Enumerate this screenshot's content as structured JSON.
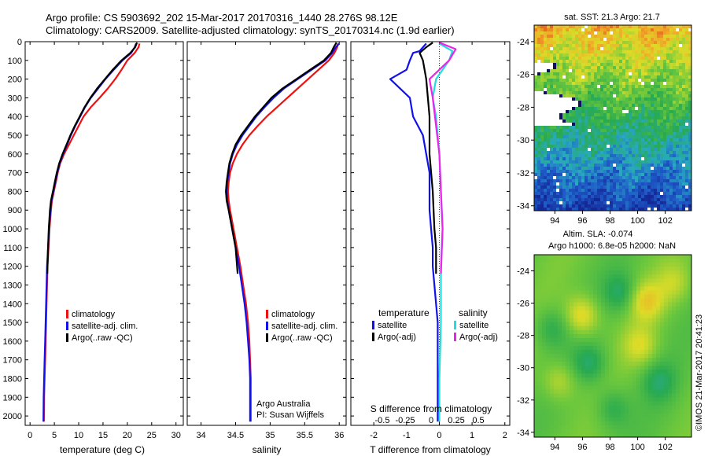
{
  "header": {
    "line1": "Argo profile: CS 5903692_202 15-Mar-2017 20170316_1440 28.276S 98.12E",
    "line2": "Climatology: CARS2009. Satellite-adjusted climatology: synTS_20170314.nc (1.9d earlier)"
  },
  "colors": {
    "climatology": "#ee1111",
    "satellite": "#1111ee",
    "argo": "#000000",
    "sal_satellite": "#22dddd",
    "sal_argo": "#ee22ee"
  },
  "y_axis": {
    "min": 0,
    "max": 2050,
    "ticks": [
      0,
      100,
      200,
      300,
      400,
      500,
      600,
      700,
      800,
      900,
      1000,
      1100,
      1200,
      1300,
      1400,
      1500,
      1600,
      1700,
      1800,
      1900,
      2000
    ]
  },
  "chart_data": [
    {
      "type": "line",
      "id": "temperature",
      "xlabel": "temperature (deg C)",
      "xlim": [
        -1,
        31.5
      ],
      "xticks": [
        0,
        5,
        10,
        15,
        20,
        25,
        30
      ],
      "legend": [
        {
          "label": "climatology",
          "color": "#ee1111"
        },
        {
          "label": "satellite-adj. clim.",
          "color": "#1111ee"
        },
        {
          "label": "Argo(..raw -QC)",
          "color": "#000000"
        }
      ],
      "series": [
        {
          "name": "climatology",
          "color": "#ee1111",
          "x": [
            22.5,
            22.3,
            21.5,
            20.0,
            18.8,
            17.5,
            16.0,
            14.3,
            12.5,
            11.0,
            10.0,
            9.0,
            8.0,
            7.0,
            6.2,
            5.7,
            5.3,
            4.9,
            4.5,
            4.3,
            4.0,
            3.8,
            3.6,
            3.5,
            3.4,
            3.3,
            3.2,
            3.1,
            3.0,
            2.9,
            2.85
          ],
          "y": [
            10,
            30,
            60,
            100,
            150,
            200,
            250,
            300,
            350,
            400,
            450,
            500,
            550,
            600,
            650,
            700,
            750,
            800,
            850,
            900,
            1000,
            1100,
            1200,
            1300,
            1400,
            1500,
            1600,
            1700,
            1800,
            1900,
            2030
          ]
        },
        {
          "name": "satellite-adj. clim.",
          "color": "#1111ee",
          "x": [
            21.8,
            21.5,
            20.8,
            19.0,
            17.2,
            15.5,
            14.0,
            12.5,
            11.3,
            10.3,
            9.3,
            8.4,
            7.6,
            6.8,
            6.1,
            5.6,
            5.2,
            4.8,
            4.4,
            4.2,
            3.9,
            3.7,
            3.5,
            3.4,
            3.3,
            3.2,
            3.1,
            3.0,
            2.9,
            2.8,
            2.75
          ],
          "y": [
            10,
            30,
            60,
            100,
            150,
            200,
            250,
            300,
            350,
            400,
            450,
            500,
            550,
            600,
            650,
            700,
            750,
            800,
            850,
            900,
            1000,
            1100,
            1200,
            1300,
            1400,
            1500,
            1600,
            1700,
            1800,
            1900,
            2030
          ]
        },
        {
          "name": "Argo(..raw -QC)",
          "color": "#000000",
          "x": [
            22.0,
            21.6,
            20.6,
            18.8,
            17.0,
            15.4,
            13.8,
            12.4,
            11.2,
            10.2,
            9.2,
            8.3,
            7.5,
            6.7,
            6.0,
            5.5,
            5.1,
            4.7,
            4.3,
            4.1,
            3.85,
            3.7,
            3.55
          ],
          "y": [
            5,
            30,
            60,
            100,
            150,
            200,
            250,
            300,
            350,
            400,
            450,
            500,
            550,
            600,
            650,
            700,
            750,
            800,
            850,
            900,
            1000,
            1100,
            1240
          ]
        }
      ],
      "annotations": []
    },
    {
      "type": "line",
      "id": "salinity",
      "xlabel": "salinity",
      "xlim": [
        33.8,
        36.1
      ],
      "xticks": [
        34,
        34.5,
        35,
        35.5,
        36
      ],
      "legend": [
        {
          "label": "climatology",
          "color": "#ee1111"
        },
        {
          "label": "satellite-adj. clim.",
          "color": "#1111ee"
        },
        {
          "label": "Argo(..raw -QC)",
          "color": "#000000"
        }
      ],
      "series": [
        {
          "name": "climatology",
          "color": "#ee1111",
          "x": [
            35.98,
            35.97,
            35.93,
            35.85,
            35.7,
            35.55,
            35.4,
            35.25,
            35.1,
            34.95,
            34.82,
            34.7,
            34.6,
            34.52,
            34.46,
            34.42,
            34.4,
            34.39,
            34.4,
            34.42,
            34.47,
            34.52,
            34.57,
            34.61,
            34.65,
            34.68,
            34.7,
            34.71,
            34.72,
            34.72
          ],
          "y": [
            10,
            30,
            60,
            100,
            150,
            200,
            250,
            300,
            350,
            400,
            450,
            500,
            550,
            600,
            650,
            700,
            750,
            800,
            850,
            900,
            1000,
            1100,
            1200,
            1300,
            1400,
            1500,
            1600,
            1700,
            1800,
            2030
          ]
        },
        {
          "name": "satellite-adj. clim.",
          "color": "#1111ee",
          "x": [
            36.0,
            35.95,
            35.9,
            35.8,
            35.6,
            35.4,
            35.2,
            35.05,
            34.92,
            34.8,
            34.7,
            34.6,
            34.52,
            34.46,
            34.42,
            34.4,
            34.38,
            34.37,
            34.38,
            34.4,
            34.45,
            34.5,
            34.55,
            34.59,
            34.63,
            34.66,
            34.68,
            34.7,
            34.71,
            34.71
          ],
          "y": [
            10,
            30,
            60,
            100,
            150,
            200,
            250,
            300,
            350,
            400,
            450,
            500,
            550,
            600,
            650,
            700,
            750,
            800,
            850,
            900,
            1000,
            1100,
            1200,
            1300,
            1400,
            1500,
            1600,
            1700,
            1800,
            2030
          ]
        },
        {
          "name": "Argo(..raw -QC)",
          "color": "#000000",
          "x": [
            35.96,
            35.92,
            35.88,
            35.78,
            35.58,
            35.38,
            35.18,
            35.02,
            34.9,
            34.78,
            34.68,
            34.58,
            34.5,
            34.45,
            34.41,
            34.39,
            34.37,
            34.36,
            34.37,
            34.4,
            34.45,
            34.5,
            34.53
          ],
          "y": [
            5,
            30,
            60,
            100,
            150,
            200,
            250,
            300,
            350,
            400,
            450,
            500,
            550,
            600,
            650,
            700,
            750,
            800,
            850,
            900,
            1000,
            1100,
            1240
          ]
        }
      ],
      "annotations": [
        "Argo Australia",
        "PI: Susan Wijffels"
      ]
    },
    {
      "type": "line",
      "id": "difference",
      "xlabel": "T difference from climatology",
      "xlabel_top": "S difference from climatology",
      "xlim": [
        -2.7,
        2.15
      ],
      "xticks": [
        -2,
        -1,
        0,
        1,
        2
      ],
      "top_ticks": [
        "-0.5",
        "-0.25",
        "0",
        "0.25",
        "0.5"
      ],
      "zero_line": true,
      "legend": [
        {
          "group": "temperature",
          "label": "satellite",
          "color": "#1111ee"
        },
        {
          "group": "temperature",
          "label": "Argo(-adj)",
          "color": "#000000"
        },
        {
          "group": "salinity",
          "label": "satellite",
          "color": "#22dddd"
        },
        {
          "group": "salinity",
          "label": "Argo(-adj)",
          "color": "#ee22ee"
        }
      ],
      "series": [
        {
          "name": "temperature satellite",
          "color": "#1111ee",
          "x": [
            -0.4,
            -0.6,
            -0.8,
            -0.9,
            -1.0,
            -1.5,
            -0.9,
            -0.8,
            -0.5,
            -0.4,
            -0.3,
            -0.3,
            -0.3,
            -0.3,
            -0.25,
            -0.2,
            -0.2,
            -0.15,
            -0.1,
            -0.05,
            -0.05,
            -0.05
          ],
          "y": [
            10,
            50,
            60,
            100,
            150,
            200,
            300,
            400,
            500,
            600,
            700,
            800,
            850,
            900,
            1000,
            1100,
            1200,
            1300,
            1400,
            1500,
            1800,
            2030
          ]
        },
        {
          "name": "temperature Argo(-adj)",
          "color": "#000000",
          "x": [
            -0.2,
            -0.4,
            -0.6,
            -0.5,
            -0.4,
            -0.3,
            -0.3,
            -0.2,
            -0.15,
            -0.1,
            -0.1
          ],
          "y": [
            5,
            30,
            60,
            100,
            200,
            400,
            600,
            800,
            1000,
            1100,
            1240
          ]
        },
        {
          "name": "salinity satellite",
          "color": "#22dddd",
          "x": [
            0.0,
            0.4,
            0.3,
            0.1,
            -0.1,
            -0.2,
            -0.1,
            0.0,
            0.05,
            0.1,
            0.05,
            0.05,
            0.0,
            0.0
          ],
          "y": [
            10,
            50,
            100,
            150,
            200,
            300,
            400,
            600,
            800,
            1000,
            1200,
            1500,
            1800,
            2030
          ]
        },
        {
          "name": "salinity Argo(-adj)",
          "color": "#ee22ee",
          "x": [
            0.0,
            0.5,
            0.3,
            0.0,
            -0.3,
            -0.2,
            0.0,
            0.05,
            0.1,
            0.05
          ],
          "y": [
            5,
            40,
            100,
            150,
            200,
            300,
            600,
            800,
            1000,
            1240
          ]
        }
      ],
      "annotations": []
    },
    {
      "type": "heatmap",
      "id": "sst_map",
      "title": "sat. SST: 21.3  Argo: 21.7",
      "x_ticks": [
        "94",
        "96",
        "98",
        "100",
        "102"
      ],
      "x_values": [
        94,
        96,
        98,
        100,
        102
      ],
      "y_ticks": [
        "-24",
        "-26",
        "-28",
        "-30",
        "-32",
        "-34"
      ],
      "y_values": [
        -24,
        -26,
        -28,
        -30,
        -32,
        -34
      ],
      "xlim": [
        92.5,
        103.9
      ],
      "ylim": [
        -34.3,
        -23.0
      ]
    },
    {
      "type": "heatmap",
      "id": "sla_map",
      "title_line1": "Altim. SLA: -0.074",
      "title_line2": "Argo h1000: 6.8e-05  h2000: NaN",
      "x_ticks": [
        "94",
        "96",
        "98",
        "100",
        "102"
      ],
      "x_values": [
        94,
        96,
        98,
        100,
        102
      ],
      "y_ticks": [
        "-24",
        "-26",
        "-28",
        "-30",
        "-32",
        "-34"
      ],
      "y_values": [
        -24,
        -26,
        -28,
        -30,
        -32,
        -34
      ],
      "xlim": [
        92.5,
        103.9
      ],
      "ylim": [
        -34.3,
        -23.0
      ]
    }
  ],
  "credit": "©IMOS 21-Mar-2017 20:41:23"
}
